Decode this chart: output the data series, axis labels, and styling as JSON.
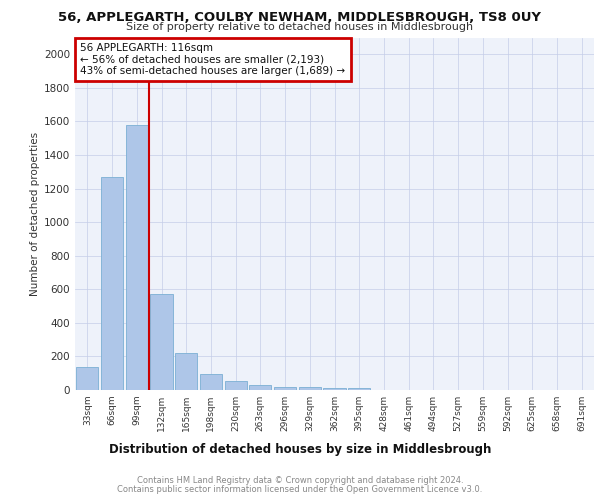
{
  "title1": "56, APPLEGARTH, COULBY NEWHAM, MIDDLESBROUGH, TS8 0UY",
  "title2": "Size of property relative to detached houses in Middlesbrough",
  "xlabel": "Distribution of detached houses by size in Middlesbrough",
  "ylabel": "Number of detached properties",
  "categories": [
    "33sqm",
    "66sqm",
    "99sqm",
    "132sqm",
    "165sqm",
    "198sqm",
    "230sqm",
    "263sqm",
    "296sqm",
    "329sqm",
    "362sqm",
    "395sqm",
    "428sqm",
    "461sqm",
    "494sqm",
    "527sqm",
    "559sqm",
    "592sqm",
    "625sqm",
    "658sqm",
    "691sqm"
  ],
  "values": [
    140,
    1270,
    1580,
    570,
    220,
    95,
    55,
    30,
    20,
    15,
    10,
    10,
    0,
    0,
    0,
    0,
    0,
    0,
    0,
    0,
    0
  ],
  "bar_color": "#aec6e8",
  "bar_edge_color": "#7bafd4",
  "red_line_x": 2.5,
  "annotation_text": "56 APPLEGARTH: 116sqm\n← 56% of detached houses are smaller (2,193)\n43% of semi-detached houses are larger (1,689) →",
  "annotation_box_color": "#ffffff",
  "annotation_box_edge": "#cc0000",
  "red_line_color": "#cc0000",
  "footer1": "Contains HM Land Registry data © Crown copyright and database right 2024.",
  "footer2": "Contains public sector information licensed under the Open Government Licence v3.0.",
  "ylim": [
    0,
    2100
  ],
  "yticks": [
    0,
    200,
    400,
    600,
    800,
    1000,
    1200,
    1400,
    1600,
    1800,
    2000
  ],
  "background_color": "#eef2fa"
}
